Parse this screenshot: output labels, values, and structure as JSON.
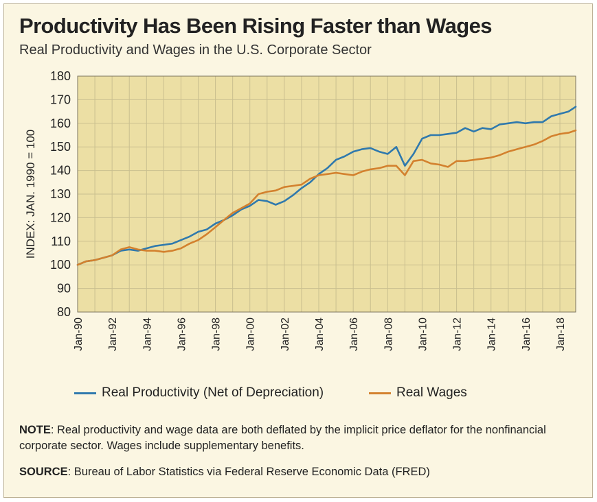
{
  "title": "Productivity Has Been Rising Faster than Wages",
  "subtitle": "Real Productivity and Wages in the U.S. Corporate Sector",
  "note": {
    "label": "NOTE",
    "text": ": Real productivity and wage data are both deflated by the implicit price deflator for the nonfinancial corporate sector. Wages include supplementary benefits."
  },
  "source": {
    "label": "SOURCE",
    "text": ": Bureau of Labor Statistics via Federal Reserve Economic Data (FRED)"
  },
  "colors": {
    "plot_background": "#ecdfa4",
    "grid": "#c9bf8f",
    "productivity": "#2f79ad",
    "wages": "#d3812e",
    "frame": "#bdb296"
  },
  "chart_data": {
    "type": "line",
    "title": "Productivity Has Been Rising Faster than Wages",
    "subtitle": "Real Productivity and Wages in the U.S. Corporate Sector",
    "xlabel": "",
    "ylabel": "INDEX: JAN. 1990 = 100",
    "x_axis": "date",
    "xlim": [
      "1990-01",
      "2018-12"
    ],
    "ylim": [
      80,
      180
    ],
    "yticks": [
      80,
      90,
      100,
      110,
      120,
      130,
      140,
      150,
      160,
      170,
      180
    ],
    "xtick_labels": [
      "Jan-90",
      "Jan-92",
      "Jan-94",
      "Jan-96",
      "Jan-98",
      "Jan-00",
      "Jan-02",
      "Jan-04",
      "Jan-06",
      "Jan-08",
      "Jan-10",
      "Jan-12",
      "Jan-14",
      "Jan-16",
      "Jan-18"
    ],
    "grid": true,
    "legend_position": "bottom",
    "series": [
      {
        "name": "Real Productivity (Net of Depreciation)",
        "color": "#2f79ad",
        "x": [
          "1990-01",
          "1990-07",
          "1991-01",
          "1991-07",
          "1992-01",
          "1992-07",
          "1993-01",
          "1993-07",
          "1994-01",
          "1994-07",
          "1995-01",
          "1995-07",
          "1996-01",
          "1996-07",
          "1997-01",
          "1997-07",
          "1998-01",
          "1998-07",
          "1999-01",
          "1999-07",
          "2000-01",
          "2000-07",
          "2001-01",
          "2001-07",
          "2002-01",
          "2002-07",
          "2003-01",
          "2003-07",
          "2004-01",
          "2004-07",
          "2005-01",
          "2005-07",
          "2006-01",
          "2006-07",
          "2007-01",
          "2007-07",
          "2008-01",
          "2008-07",
          "2009-01",
          "2009-07",
          "2010-01",
          "2010-07",
          "2011-01",
          "2011-07",
          "2012-01",
          "2012-07",
          "2013-01",
          "2013-07",
          "2014-01",
          "2014-07",
          "2015-01",
          "2015-07",
          "2016-01",
          "2016-07",
          "2017-01",
          "2017-07",
          "2018-01",
          "2018-07",
          "2018-12"
        ],
        "values": [
          100,
          101.5,
          102,
          103,
          104,
          106,
          106.5,
          106,
          107,
          108,
          108.5,
          109,
          110.5,
          112,
          114,
          115,
          117.5,
          119,
          121,
          123.5,
          125,
          127.5,
          127,
          125.5,
          127,
          129.5,
          132.5,
          135,
          138.5,
          141,
          144.5,
          146,
          148,
          149,
          149.5,
          148,
          147,
          150,
          142,
          147,
          153.5,
          155,
          155,
          155.5,
          156,
          158,
          156.5,
          158,
          157.5,
          159.5,
          160,
          160.5,
          160,
          160.5,
          160.5,
          163,
          164,
          165,
          167
        ]
      },
      {
        "name": "Real Wages",
        "color": "#d3812e",
        "x": [
          "1990-01",
          "1990-07",
          "1991-01",
          "1991-07",
          "1992-01",
          "1992-07",
          "1993-01",
          "1993-07",
          "1994-01",
          "1994-07",
          "1995-01",
          "1995-07",
          "1996-01",
          "1996-07",
          "1997-01",
          "1997-07",
          "1998-01",
          "1998-07",
          "1999-01",
          "1999-07",
          "2000-01",
          "2000-07",
          "2001-01",
          "2001-07",
          "2002-01",
          "2002-07",
          "2003-01",
          "2003-07",
          "2004-01",
          "2004-07",
          "2005-01",
          "2005-07",
          "2006-01",
          "2006-07",
          "2007-01",
          "2007-07",
          "2008-01",
          "2008-07",
          "2009-01",
          "2009-07",
          "2010-01",
          "2010-07",
          "2011-01",
          "2011-07",
          "2012-01",
          "2012-07",
          "2013-01",
          "2013-07",
          "2014-01",
          "2014-07",
          "2015-01",
          "2015-07",
          "2016-01",
          "2016-07",
          "2017-01",
          "2017-07",
          "2018-01",
          "2018-07",
          "2018-12"
        ],
        "values": [
          100,
          101.5,
          102,
          103,
          104,
          106.5,
          107.5,
          106.5,
          106,
          106,
          105.5,
          106,
          107,
          109,
          110.5,
          113,
          116,
          119,
          122,
          124,
          126,
          130,
          131,
          131.5,
          133,
          133.5,
          134,
          136.5,
          138,
          138.5,
          139,
          138.5,
          138,
          139.5,
          140.5,
          141,
          142,
          142,
          138,
          144,
          144.5,
          143,
          142.5,
          141.5,
          144,
          144,
          144.5,
          145,
          145.5,
          146.5,
          148,
          149,
          150,
          151,
          152.5,
          154.5,
          155.5,
          156,
          157
        ]
      }
    ]
  }
}
